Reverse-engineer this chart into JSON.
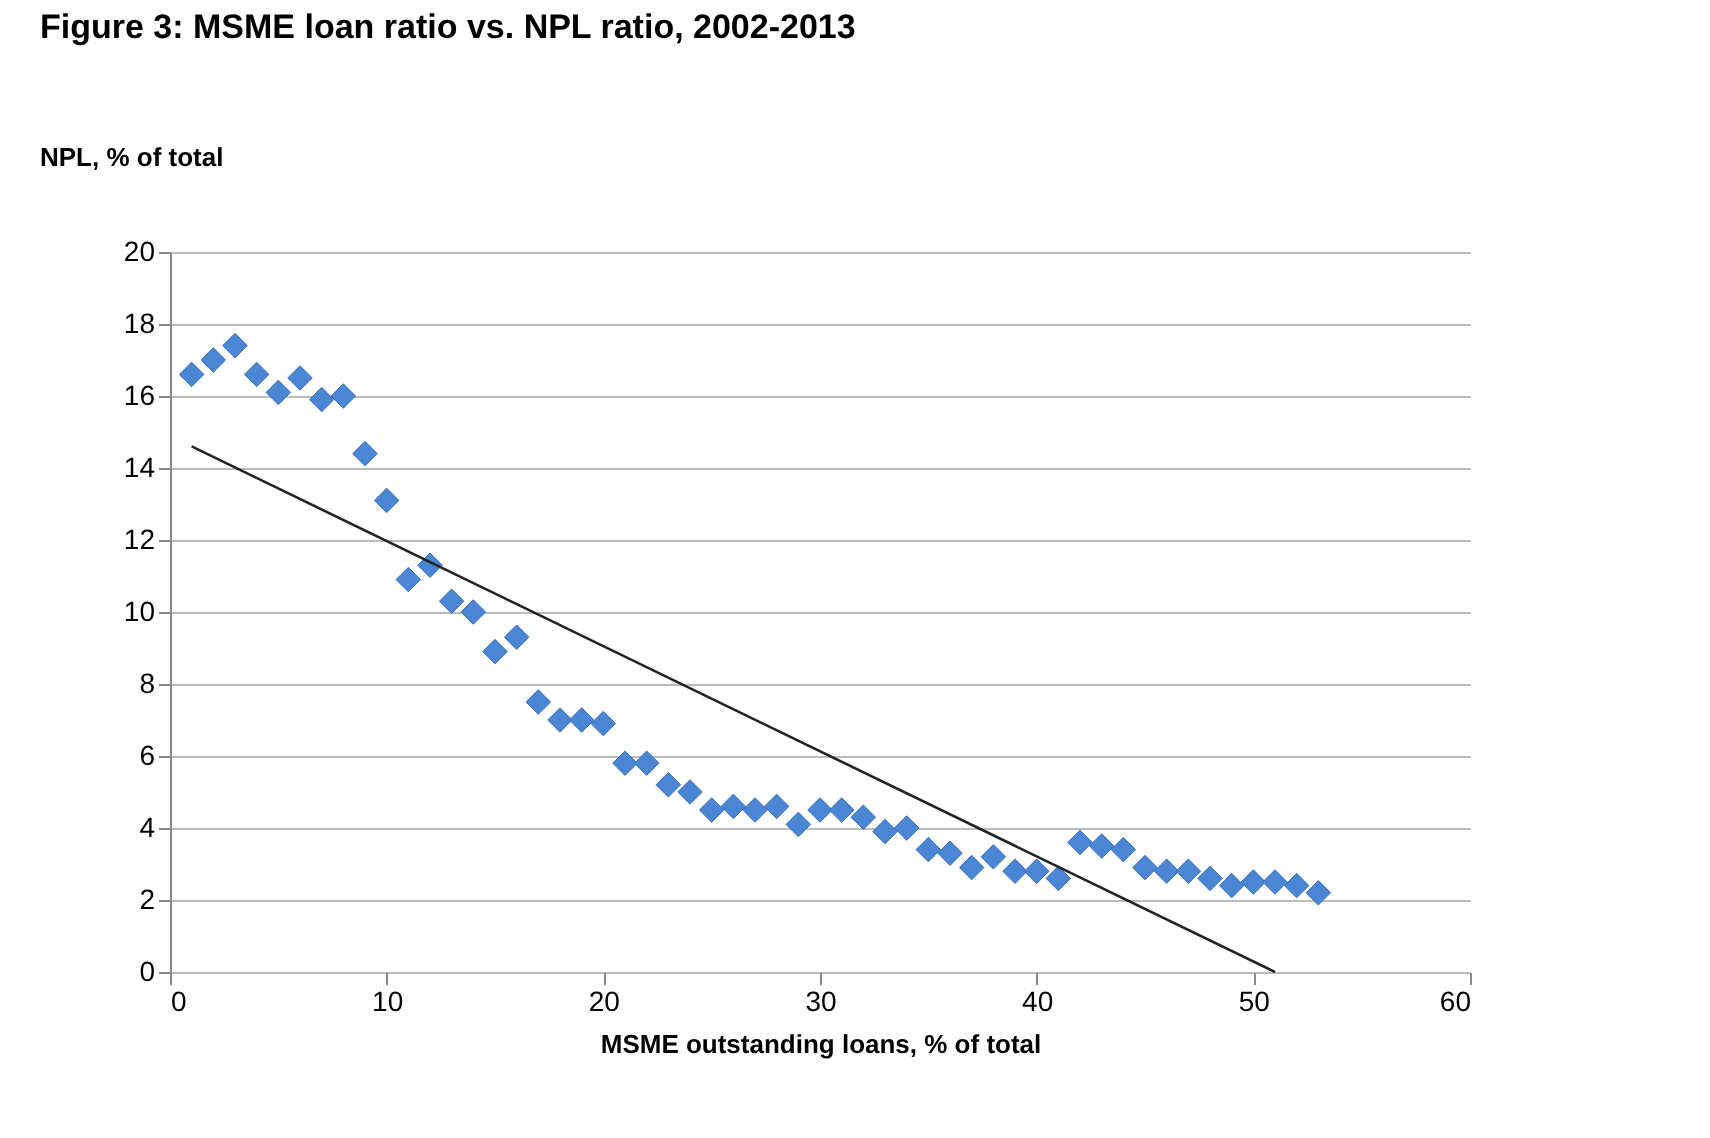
{
  "chart_data": {
    "type": "scatter",
    "title": "Figure 3: MSME loan ratio vs. NPL ratio, 2002-2013",
    "ylabel": "NPL, % of total",
    "xlabel": "MSME outstanding loans, % of total",
    "xlim": [
      0,
      60
    ],
    "xticks": [
      0,
      10,
      20,
      30,
      40,
      50,
      60
    ],
    "ylim": [
      0,
      20
    ],
    "yticks": [
      0,
      2,
      4,
      6,
      8,
      10,
      12,
      14,
      16,
      18,
      20
    ],
    "grid": "y",
    "series": [
      {
        "marker": "diamond",
        "color": "#4a86d4",
        "x": [
          1,
          2,
          3,
          4,
          5,
          6,
          7,
          8,
          9,
          10,
          11,
          12,
          13,
          14,
          15,
          16,
          17,
          18,
          19,
          20,
          21,
          22,
          23,
          24,
          25,
          26,
          27,
          28,
          29,
          30,
          31,
          32,
          33,
          34,
          35,
          36,
          37,
          38,
          39,
          40,
          41,
          42,
          43,
          44,
          45,
          46,
          47,
          48,
          49,
          50,
          51,
          52,
          53
        ],
        "values": [
          16.6,
          17.0,
          17.4,
          16.6,
          16.1,
          16.5,
          15.9,
          16.0,
          14.4,
          13.1,
          10.9,
          11.3,
          10.3,
          10.0,
          8.9,
          9.3,
          7.5,
          7.0,
          7.0,
          6.9,
          5.8,
          5.8,
          5.2,
          5.0,
          4.5,
          4.6,
          4.5,
          4.6,
          4.1,
          4.5,
          4.5,
          4.3,
          3.9,
          4.0,
          3.4,
          3.3,
          2.9,
          3.2,
          2.8,
          2.8,
          2.6,
          3.6,
          3.5,
          3.4,
          2.9,
          2.8,
          2.8,
          2.6,
          2.4,
          2.5,
          2.5,
          2.4,
          2.2
        ]
      },
      {
        "type": "line",
        "color": "#222222",
        "x": [
          1,
          51
        ],
        "values": [
          14.6,
          0
        ]
      }
    ]
  }
}
